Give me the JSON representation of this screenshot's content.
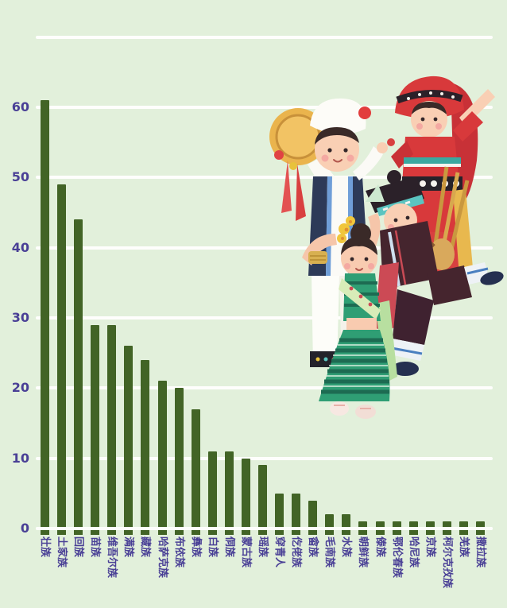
{
  "chart_data": {
    "type": "bar",
    "title": "",
    "xlabel": "",
    "ylabel": "",
    "categories": [
      "壮族",
      "土家族",
      "回族",
      "苗族",
      "维吾尔族",
      "满族",
      "藏族",
      "哈萨克族",
      "布依族",
      "彝族",
      "白族",
      "侗族",
      "蒙古族",
      "瑶族",
      "穿青人",
      "仡佬族",
      "畲族",
      "毛南族",
      "水族",
      "朝鲜族",
      "傣族",
      "鄂伦春族",
      "哈尼族",
      "京族",
      "柯尔克孜族",
      "羌族",
      "撒拉族"
    ],
    "values": [
      61,
      49,
      44,
      29,
      29,
      26,
      24,
      21,
      20,
      17,
      11,
      11,
      10,
      9,
      5,
      5,
      4,
      2,
      2,
      1,
      1,
      1,
      1,
      1,
      1,
      1,
      1
    ],
    "yticks": [
      0,
      10,
      20,
      30,
      40,
      50,
      60
    ],
    "gridlines": [
      0,
      10,
      20,
      30,
      40,
      50,
      60,
      70
    ],
    "ylim": [
      0,
      70
    ],
    "grid": true,
    "legend": "none",
    "colors": {
      "background": "#e2f0db",
      "bar": "#426426",
      "axis_text": "#4a4096",
      "gridline": "#fefefc"
    }
  },
  "illustration": {
    "figures": [
      "man-with-hand-drum",
      "woman-in-red-costume",
      "boy-with-lusheng-pipes",
      "woman-in-green-striped-dress"
    ]
  }
}
